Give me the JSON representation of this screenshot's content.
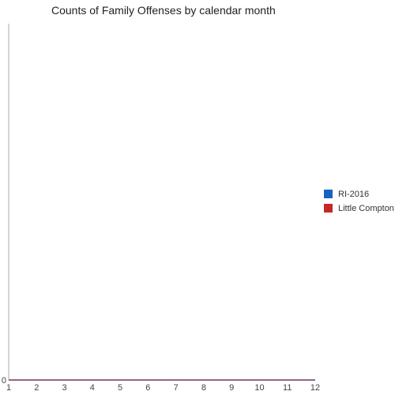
{
  "chart_data": {
    "type": "line",
    "title": "Counts of Family Offenses by calendar month",
    "xlabel": "",
    "ylabel": "",
    "x": [
      1,
      2,
      3,
      4,
      5,
      6,
      7,
      8,
      9,
      10,
      11,
      12
    ],
    "xlim": [
      1,
      12
    ],
    "ylim": [
      0,
      1
    ],
    "y_ticks": [
      "0"
    ],
    "grid": false,
    "legend_position": "right",
    "series": [
      {
        "name": "RI-2016",
        "color": "#1565c0",
        "values": [
          0,
          0,
          0,
          0,
          0,
          0,
          0,
          0,
          0,
          0,
          0,
          0
        ]
      },
      {
        "name": "Little Compton",
        "color": "#c62828",
        "values": [
          0,
          0,
          0,
          0,
          0,
          0,
          0,
          0,
          0,
          0,
          0,
          0
        ]
      }
    ]
  }
}
